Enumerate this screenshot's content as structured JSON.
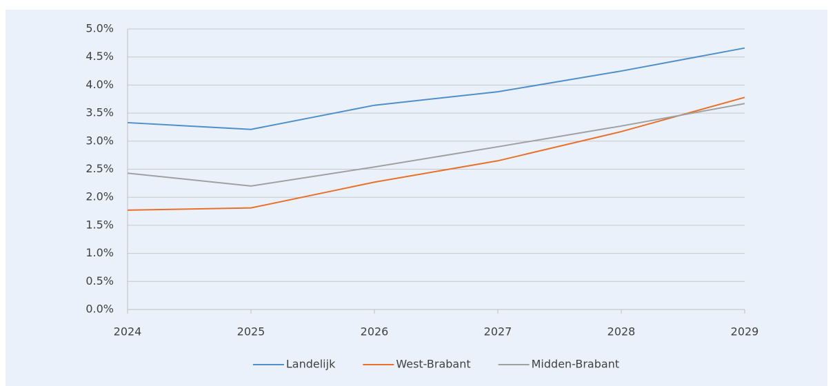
{
  "chart_data": {
    "type": "line",
    "x": [
      2024,
      2025,
      2026,
      2027,
      2028,
      2029
    ],
    "xlim": [
      2024,
      2029
    ],
    "xticks": [
      2024,
      2025,
      2026,
      2027,
      2028,
      2029
    ],
    "ylim": [
      0,
      5
    ],
    "yticks": [
      {
        "value": 0,
        "label": "0.0%"
      },
      {
        "value": 0.5,
        "label": "0.5%"
      },
      {
        "value": 1,
        "label": "1.0%"
      },
      {
        "value": 1.5,
        "label": "1.5%"
      },
      {
        "value": 2,
        "label": "2.0%"
      },
      {
        "value": 2.5,
        "label": "2.5%"
      },
      {
        "value": 3,
        "label": "3.0%"
      },
      {
        "value": 3.5,
        "label": "3.5%"
      },
      {
        "value": 4,
        "label": "4.0%"
      },
      {
        "value": 4.5,
        "label": "4.5%"
      },
      {
        "value": 5,
        "label": "5.0%"
      }
    ],
    "grid": true,
    "legend": "bottom",
    "series": [
      {
        "name": "Landelijk",
        "color": "#4e8fc9",
        "values": [
          3.33,
          3.21,
          3.64,
          3.88,
          4.25,
          4.66
        ]
      },
      {
        "name": "West-Brabant",
        "color": "#e8702a",
        "values": [
          1.77,
          1.81,
          2.27,
          2.65,
          3.17,
          3.78
        ]
      },
      {
        "name": "Midden-Brabant",
        "color": "#a0a0a0",
        "values": [
          2.43,
          2.2,
          2.54,
          2.9,
          3.27,
          3.67
        ]
      }
    ]
  }
}
